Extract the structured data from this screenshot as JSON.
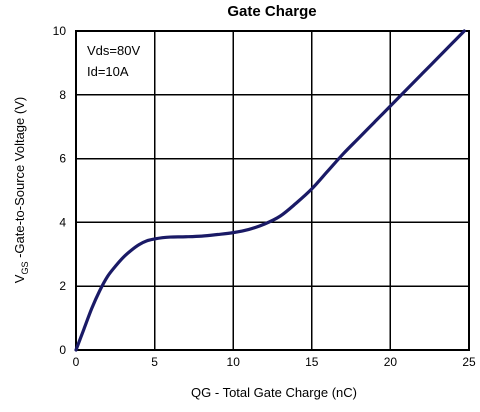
{
  "chart_data": {
    "type": "line",
    "title": "Gate Charge",
    "xlabel": "QG - Total Gate Charge (nC)",
    "ylabel_prefix": "V",
    "ylabel_subscript": "GS",
    "ylabel_suffix": " -Gate-to-Source Voltage (V)",
    "xlim": [
      0,
      25
    ],
    "ylim": [
      0,
      10
    ],
    "xticks": [
      0,
      5,
      10,
      15,
      20,
      25
    ],
    "yticks": [
      0,
      2,
      4,
      6,
      8,
      10
    ],
    "grid": true,
    "annotations": [
      "Vds=80V",
      "Id=10A"
    ],
    "series": [
      {
        "color": "#1a1a66",
        "x": [
          0,
          0.5,
          1.0,
          1.5,
          2.0,
          2.5,
          3.0,
          3.5,
          4.0,
          4.5,
          5.0,
          5.5,
          6.0,
          7.0,
          8.0,
          9.0,
          10.0,
          11.0,
          12.0,
          13.0,
          14.0,
          15.0,
          16.0,
          17.0,
          18.0,
          19.0,
          20.0,
          21.0,
          22.0,
          23.0,
          24.0,
          24.7
        ],
        "y": [
          0,
          0.65,
          1.3,
          1.85,
          2.3,
          2.62,
          2.9,
          3.12,
          3.3,
          3.42,
          3.48,
          3.52,
          3.54,
          3.55,
          3.57,
          3.62,
          3.68,
          3.78,
          3.95,
          4.2,
          4.6,
          5.05,
          5.6,
          6.15,
          6.65,
          7.15,
          7.65,
          8.15,
          8.65,
          9.15,
          9.65,
          10.0
        ]
      }
    ]
  }
}
